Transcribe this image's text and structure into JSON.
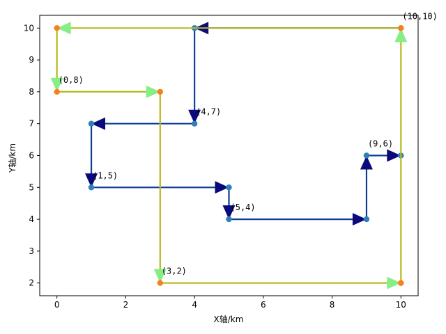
{
  "chart_data": {
    "type": "line",
    "xlabel": "X轴/km",
    "ylabel": "Y轴/km",
    "xlim": [
      -0.5,
      10.5
    ],
    "ylim": [
      1.6,
      10.4
    ],
    "xticks": [
      "0",
      "2",
      "4",
      "6",
      "8",
      "10"
    ],
    "yticks": [
      "2",
      "3",
      "4",
      "5",
      "6",
      "7",
      "8",
      "9",
      "10"
    ],
    "grid": false,
    "series": [
      {
        "color_line": "#0d3f93",
        "color_arrow": "#0a0a7a",
        "color_marker": "#2f7fb8",
        "points": [
          [
            10,
            10
          ],
          [
            4,
            10
          ],
          [
            4,
            7
          ],
          [
            1,
            7
          ],
          [
            1,
            5
          ],
          [
            5,
            5
          ],
          [
            5,
            4
          ],
          [
            9,
            4
          ],
          [
            9,
            6
          ],
          [
            10,
            6
          ]
        ]
      },
      {
        "color_line": "#b8b820",
        "color_arrow": "#86ee86",
        "color_marker": "#f7801c",
        "points": [
          [
            10,
            2
          ],
          [
            10,
            10
          ],
          [
            0,
            10
          ],
          [
            0,
            8
          ],
          [
            3,
            8
          ],
          [
            3,
            2
          ],
          [
            10,
            2
          ]
        ]
      }
    ],
    "point_labels": [
      {
        "text": "(10,10)",
        "x": 10,
        "y": 10
      },
      {
        "text": "(0,8)",
        "x": 0,
        "y": 8
      },
      {
        "text": "(4,7)",
        "x": 4,
        "y": 7
      },
      {
        "text": "(9,6)",
        "x": 9,
        "y": 6
      },
      {
        "text": "(1,5)",
        "x": 1,
        "y": 5
      },
      {
        "text": "(5,4)",
        "x": 5,
        "y": 4
      },
      {
        "text": "(3,2)",
        "x": 3,
        "y": 2
      }
    ]
  }
}
